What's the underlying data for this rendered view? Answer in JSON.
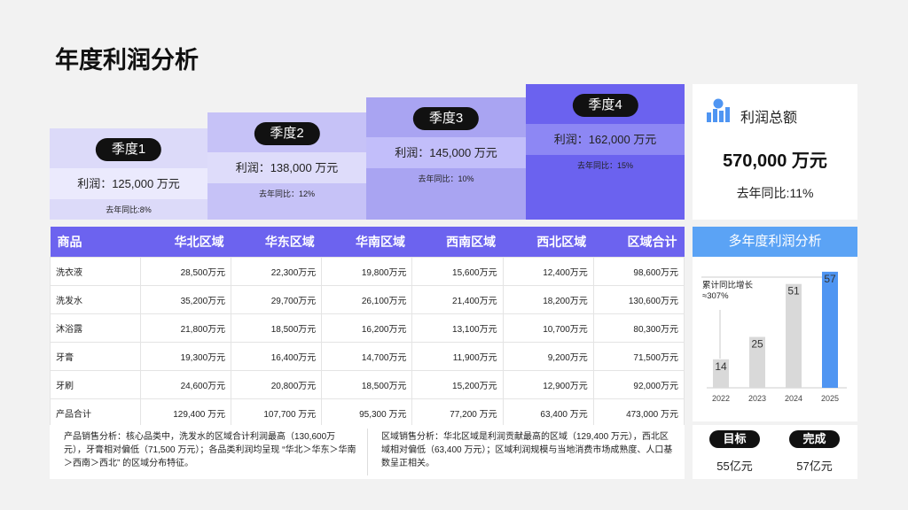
{
  "title": "年度利润分析",
  "quarters": [
    {
      "label": "季度1",
      "profit": "利润：125,000 万元",
      "yoy": "去年同比:8%"
    },
    {
      "label": "季度2",
      "profit": "利润：138,000 万元",
      "yoy": "去年同比：12%"
    },
    {
      "label": "季度3",
      "profit": "利润：145,000 万元",
      "yoy": "去年同比：10%"
    },
    {
      "label": "季度4",
      "profit": "利润：162,000 万元",
      "yoy": "去年同比：15%"
    }
  ],
  "summary": {
    "title": "利润总额",
    "total": "570,000 万元",
    "yoy": "去年同比:11%"
  },
  "table": {
    "header": [
      "商品",
      "华北区域",
      "华东区域",
      "华南区域",
      "西南区域",
      "西北区域",
      "区域合计"
    ],
    "rows": [
      [
        "洗衣液",
        "28,500万元",
        "22,300万元",
        "19,800万元",
        "15,600万元",
        "12,400万元",
        "98,600万元"
      ],
      [
        "洗发水",
        "35,200万元",
        "29,700万元",
        "26,100万元",
        "21,400万元",
        "18,200万元",
        "130,600万元"
      ],
      [
        "沐浴露",
        "21,800万元",
        "18,500万元",
        "16,200万元",
        "13,100万元",
        "10,700万元",
        "80,300万元"
      ],
      [
        "牙膏",
        "19,300万元",
        "16,400万元",
        "14,700万元",
        "11,900万元",
        "9,200万元",
        "71,500万元"
      ],
      [
        "牙刷",
        "24,600万元",
        "20,800万元",
        "18,500万元",
        "15,200万元",
        "12,900万元",
        "92,000万元"
      ],
      [
        "产品合计",
        "129,400 万元",
        "107,700 万元",
        "95,300 万元",
        "77,200 万元",
        "63,400 万元",
        "473,000 万元"
      ]
    ]
  },
  "notes": [
    "产品销售分析：核心品类中，洗发水的区域合计利润最高（130,600万元），牙膏相对偏低（71,500 万元）；各品类利润均呈现 “华北＞华东＞华南＞西南＞西北” 的区域分布特征。",
    "区域销售分析：华北区域是利润贡献最高的区域（129,400 万元），西北区域相对偏低（63,400 万元）；区域利润规模与当地消费市场成熟度、人口基数呈正相关。"
  ],
  "chart_data": {
    "type": "bar",
    "title": "多年度利润分析",
    "annotation": "累计同比增长≈307%",
    "categories": [
      "2022",
      "2023",
      "2024",
      "2025"
    ],
    "values": [
      14,
      25,
      51,
      57
    ],
    "colors": [
      "#d9d9d9",
      "#d9d9d9",
      "#d9d9d9",
      "#4f95f2"
    ],
    "ylim": [
      0,
      60
    ]
  },
  "goals": [
    {
      "label": "目标",
      "value": "55亿元"
    },
    {
      "label": "完成",
      "value": "57亿元"
    }
  ]
}
